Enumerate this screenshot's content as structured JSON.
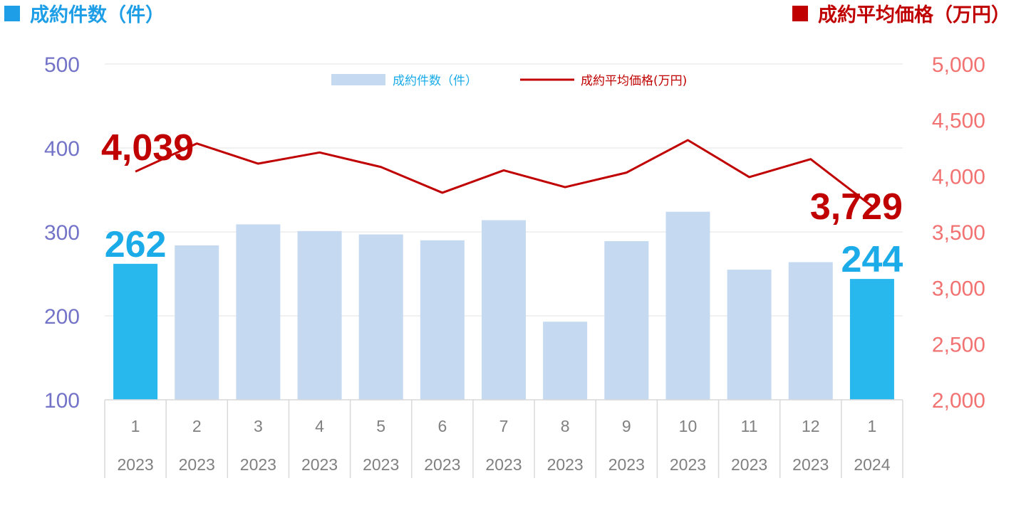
{
  "header": {
    "left_title": "成約件数（件）",
    "right_title": "成約平均価格（万円）",
    "left_color": "#1e9ee6",
    "right_color": "#c00000"
  },
  "legend": {
    "bar_label": "成約件数（件）",
    "line_label": "成約平均価格(万円)"
  },
  "chart_data": {
    "type": "bar",
    "categories": [
      "1",
      "2",
      "3",
      "4",
      "5",
      "6",
      "7",
      "8",
      "9",
      "10",
      "11",
      "12",
      "1"
    ],
    "years": [
      "2023",
      "2023",
      "2023",
      "2023",
      "2023",
      "2023",
      "2023",
      "2023",
      "2023",
      "2023",
      "2023",
      "2023",
      "2024"
    ],
    "series": [
      {
        "name": "成約件数（件）",
        "type": "bar",
        "axis": "left",
        "values": [
          262,
          284,
          309,
          301,
          297,
          290,
          314,
          193,
          289,
          324,
          255,
          264,
          244
        ],
        "color": "#c5d9f1",
        "highlight_color": "#29b8ee",
        "highlight_indices": [
          0,
          12
        ]
      },
      {
        "name": "成約平均価格(万円)",
        "type": "line",
        "axis": "right",
        "values": [
          4039,
          4290,
          4110,
          4210,
          4080,
          3850,
          4050,
          3900,
          4030,
          4320,
          3990,
          4150,
          3729
        ],
        "color": "#c00000"
      }
    ],
    "left_axis": {
      "min": 100,
      "max": 500,
      "ticks": [
        "100",
        "200",
        "300",
        "400",
        "500"
      ],
      "color": "#7373c8"
    },
    "right_axis": {
      "min": 2000,
      "max": 5000,
      "ticks": [
        "2,000",
        "2,500",
        "3,000",
        "3,500",
        "4,000",
        "4,500",
        "5,000"
      ],
      "color": "#f27272"
    },
    "annotations": {
      "first_bar": "262",
      "last_bar": "244",
      "first_price": "4,039",
      "last_price": "3,729",
      "bar_label_color": "#1aabe8",
      "price_label_color": "#c00000"
    },
    "grid": true,
    "legend_position": "top-center"
  }
}
